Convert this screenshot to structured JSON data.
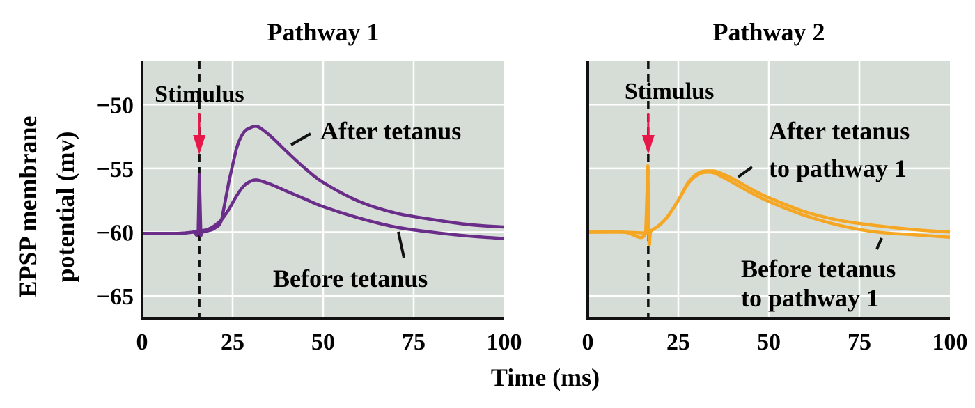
{
  "chart_data": [
    {
      "type": "line",
      "title": "Pathway 1",
      "xlabel": "Time (ms)",
      "ylabel": [
        "EPSP membrane",
        "potential (mv)"
      ],
      "xlim": [
        0,
        100
      ],
      "ylim": [
        -66.8,
        -46.6
      ],
      "xticks": [
        0,
        25,
        50,
        75,
        100
      ],
      "xtick_labels": [
        "0",
        "25",
        "50",
        "75",
        "100"
      ],
      "yticks": [
        -50,
        -55,
        -60,
        -65
      ],
      "ytick_labels": [
        "−50",
        "−55",
        "−60",
        "−65"
      ],
      "grid": true,
      "stimulus": {
        "label": "Stimulus",
        "x": 15.8
      },
      "series": [
        {
          "name": "After tetanus",
          "color": "#6b2d8a",
          "x": [
            0,
            10,
            14,
            15.5,
            15.8,
            16.2,
            16.5,
            18,
            20,
            22,
            24,
            26,
            28,
            30,
            31.5,
            33,
            36,
            40,
            45,
            50,
            60,
            70,
            80,
            90,
            100
          ],
          "y": [
            -60.1,
            -60.1,
            -60,
            -59.9,
            -55.5,
            -59.9,
            -60,
            -59.9,
            -59.7,
            -59,
            -56,
            -53.5,
            -52.2,
            -51.8,
            -51.7,
            -51.9,
            -52.6,
            -53.7,
            -55,
            -56.1,
            -57.6,
            -58.5,
            -59,
            -59.4,
            -59.6
          ]
        },
        {
          "name": "Before tetanus",
          "color": "#6b2d8a",
          "x": [
            0,
            10,
            14,
            16,
            18,
            20,
            22,
            24,
            26,
            28,
            30,
            31.5,
            33,
            36,
            40,
            45,
            50,
            60,
            70,
            80,
            90,
            100
          ],
          "y": [
            -60.1,
            -60.1,
            -60,
            -59.9,
            -59.8,
            -59.5,
            -59,
            -58.2,
            -57.2,
            -56.4,
            -56,
            -55.9,
            -56,
            -56.3,
            -56.8,
            -57.4,
            -58,
            -58.9,
            -59.6,
            -60,
            -60.3,
            -60.5
          ]
        }
      ]
    },
    {
      "type": "line",
      "title": "Pathway 2",
      "xlabel": "Time (ms)",
      "xlim": [
        0,
        100
      ],
      "ylim": [
        -66.8,
        -46.6
      ],
      "xticks": [
        0,
        25,
        50,
        75,
        100
      ],
      "xtick_labels": [
        "0",
        "25",
        "50",
        "75",
        "100"
      ],
      "grid": true,
      "stimulus": {
        "label": "Stimulus",
        "x": 16.7
      },
      "series": [
        {
          "name": "After tetanus to pathway 1",
          "color": "#f5a623",
          "x": [
            0,
            10,
            16,
            16.6,
            16.8,
            17,
            17.3,
            18,
            20,
            22,
            25,
            28,
            31,
            34,
            36,
            40,
            45,
            50,
            60,
            70,
            80,
            90,
            100
          ],
          "y": [
            -60,
            -60,
            -60.05,
            -54.8,
            -60,
            -61,
            -60,
            -59.8,
            -59.4,
            -58.8,
            -57.5,
            -56,
            -55.3,
            -55.2,
            -55.3,
            -55.8,
            -56.6,
            -57.3,
            -58.4,
            -59.1,
            -59.5,
            -59.8,
            -60
          ]
        },
        {
          "name": "Before tetanus to pathway 1",
          "color": "#f5a623",
          "x": [
            0,
            10,
            16,
            18,
            20,
            22,
            25,
            28,
            31,
            34,
            36,
            40,
            45,
            50,
            60,
            70,
            80,
            90,
            100
          ],
          "y": [
            -60,
            -60,
            -60.05,
            -59.8,
            -59.4,
            -58.8,
            -57.5,
            -56.1,
            -55.4,
            -55.3,
            -55.5,
            -56.1,
            -56.9,
            -57.6,
            -58.7,
            -59.5,
            -60,
            -60.2,
            -60.4
          ]
        }
      ]
    }
  ],
  "labels": {
    "p1_after": "After tetanus",
    "p1_before": "Before tetanus",
    "p2_after": [
      "After tetanus",
      "to pathway 1"
    ],
    "p2_before": [
      "Before tetanus",
      "to pathway 1"
    ],
    "xlabel": "Time (ms)"
  },
  "colors": {
    "background": "#d6ddd6",
    "arrow": "#e8174a",
    "grid": "#ffffff"
  }
}
